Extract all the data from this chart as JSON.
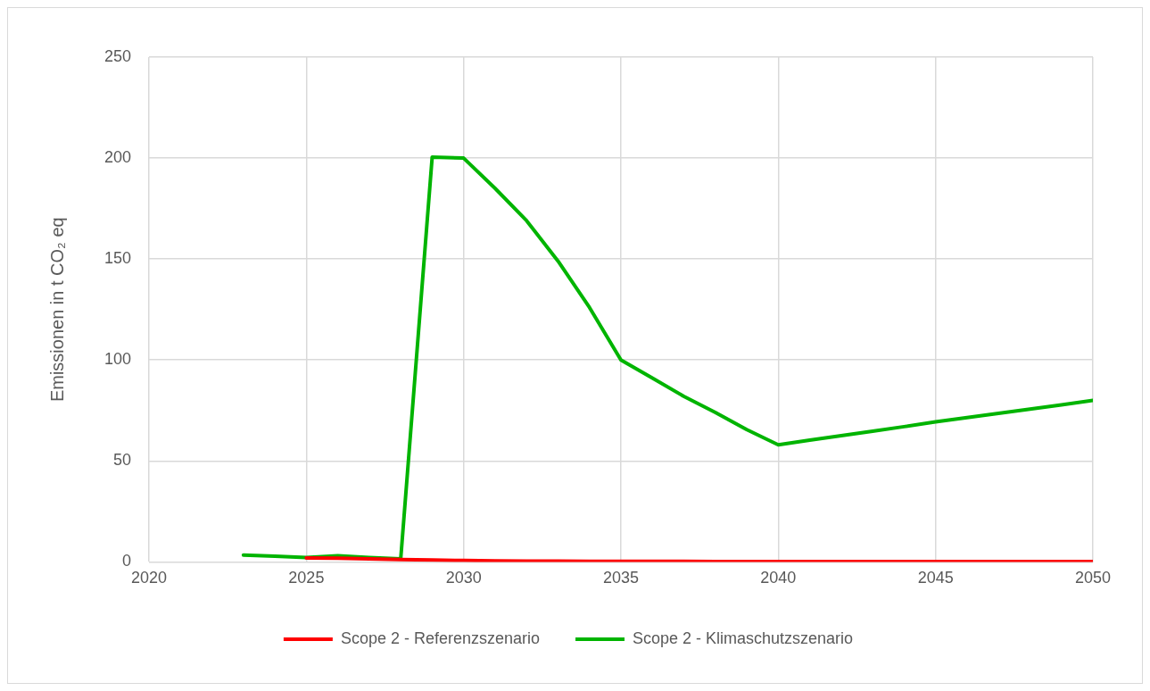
{
  "chart_data": {
    "type": "line",
    "ylabel": "Emissionen in t CO₂ eq",
    "x": [
      2023,
      2024,
      2025,
      2026,
      2027,
      2028,
      2029,
      2030,
      2031,
      2032,
      2033,
      2034,
      2035,
      2036,
      2037,
      2038,
      2039,
      2040,
      2041,
      2042,
      2043,
      2044,
      2045,
      2046,
      2047,
      2048,
      2049,
      2050
    ],
    "series": [
      {
        "name": "Scope 2 - Referenzszenario",
        "color": "#ff0000",
        "values": [
          null,
          null,
          2.0,
          1.8,
          1.5,
          1.2,
          0.9,
          0.7,
          0.5,
          0.4,
          0.4,
          0.3,
          0.3,
          0.3,
          0.3,
          0.2,
          0.2,
          0.2,
          0.2,
          0.2,
          0.2,
          0.2,
          0.2,
          0.2,
          0.2,
          0.2,
          0.2,
          0.2
        ]
      },
      {
        "name": "Scope 2 - Klimaschutzszenario",
        "color": "#00b400",
        "values": [
          3.4,
          2.8,
          2.2,
          3.0,
          2.2,
          1.5,
          200.5,
          200,
          185,
          169,
          149,
          126,
          100,
          91,
          82,
          74,
          65.5,
          58,
          60.3,
          62.5,
          64.7,
          67,
          69.4,
          71.5,
          73.6,
          75.7,
          77.8,
          80
        ]
      }
    ],
    "xlim": [
      2020,
      2050
    ],
    "xticks": [
      2020,
      2025,
      2030,
      2035,
      2040,
      2045,
      2050
    ],
    "ylim": [
      0,
      250
    ],
    "yticks": [
      0,
      50,
      100,
      150,
      200,
      250
    ],
    "grid": true,
    "legend": "bottom",
    "marker": "none",
    "line_style": "solid"
  }
}
